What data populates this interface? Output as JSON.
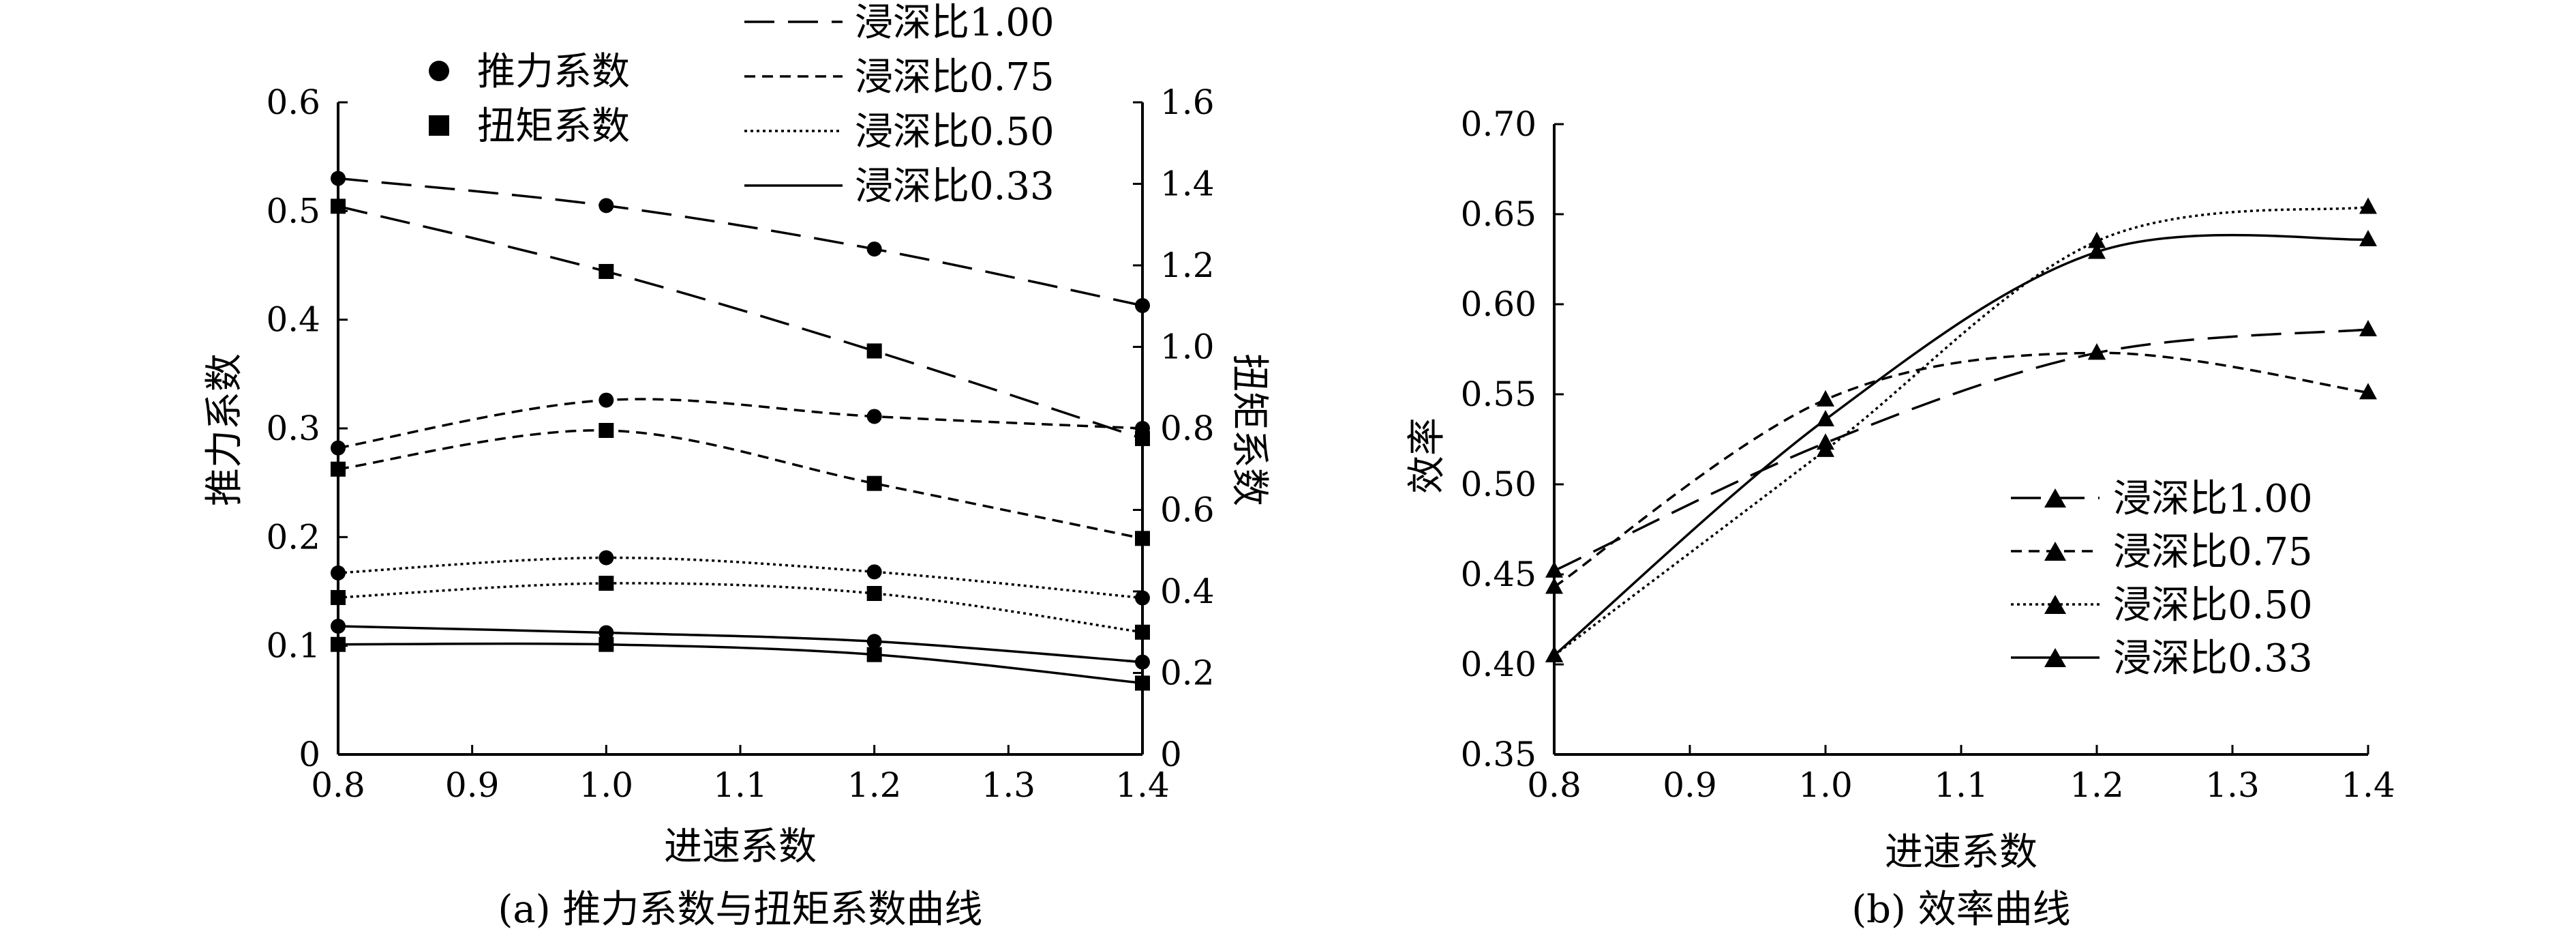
{
  "chart_data": [
    {
      "type": "line",
      "caption": "(a) 推力系数与扭矩系数曲线",
      "xlabel": "进速系数",
      "ylabel_left": "推力系数",
      "ylabel_right": "扭矩系数",
      "x": [
        0.8,
        1.0,
        1.2,
        1.4
      ],
      "xlim": [
        0.8,
        1.4
      ],
      "xticks": [
        "0.8",
        "0.9",
        "1.0",
        "1.1",
        "1.2",
        "1.3",
        "1.4"
      ],
      "ylim_left": [
        0,
        0.6
      ],
      "yticks_left": [
        "0",
        "0.1",
        "0.2",
        "0.3",
        "0.4",
        "0.5",
        "0.6"
      ],
      "ylim_right": [
        0,
        1.6
      ],
      "yticks_right": [
        "0",
        "0.2",
        "0.4",
        "0.6",
        "0.8",
        "1.0",
        "1.2",
        "1.4",
        "1.6"
      ],
      "grid": false,
      "marker_legend": [
        {
          "marker": "circle",
          "label": "推力系数"
        },
        {
          "marker": "square",
          "label": "扭矩系数"
        }
      ],
      "line_legend": [
        {
          "dash": "longdash",
          "label": "浸深比1.00"
        },
        {
          "dash": "dash",
          "label": "浸深比0.75"
        },
        {
          "dash": "dot",
          "label": "浸深比0.50"
        },
        {
          "dash": "solid",
          "label": "浸深比0.33"
        }
      ],
      "series": [
        {
          "name": "浸深比1.00",
          "quantity": "推力系数",
          "axis": "left",
          "dash": "longdash",
          "marker": "circle",
          "values": [
            0.53,
            0.505,
            0.465,
            0.413
          ]
        },
        {
          "name": "浸深比1.00",
          "quantity": "扭矩系数",
          "axis": "right",
          "dash": "longdash",
          "marker": "square",
          "values": [
            1.345,
            1.185,
            0.99,
            0.775
          ]
        },
        {
          "name": "浸深比0.75",
          "quantity": "推力系数",
          "axis": "left",
          "dash": "dash",
          "marker": "circle",
          "values": [
            0.282,
            0.326,
            0.311,
            0.3
          ]
        },
        {
          "name": "浸深比0.75",
          "quantity": "扭矩系数",
          "axis": "right",
          "dash": "dash",
          "marker": "square",
          "values": [
            0.7,
            0.795,
            0.665,
            0.53
          ]
        },
        {
          "name": "浸深比0.50",
          "quantity": "推力系数",
          "axis": "left",
          "dash": "dot",
          "marker": "circle",
          "values": [
            0.167,
            0.181,
            0.168,
            0.144
          ]
        },
        {
          "name": "浸深比0.50",
          "quantity": "扭矩系数",
          "axis": "right",
          "dash": "dot",
          "marker": "square",
          "values": [
            0.385,
            0.42,
            0.395,
            0.3
          ]
        },
        {
          "name": "浸深比0.33",
          "quantity": "推力系数",
          "axis": "left",
          "dash": "solid",
          "marker": "circle",
          "values": [
            0.118,
            0.112,
            0.104,
            0.085
          ]
        },
        {
          "name": "浸深比0.33",
          "quantity": "扭矩系数",
          "axis": "right",
          "dash": "solid",
          "marker": "square",
          "values": [
            0.27,
            0.27,
            0.245,
            0.175
          ]
        }
      ]
    },
    {
      "type": "line",
      "caption": "(b) 效率曲线",
      "xlabel": "进速系数",
      "ylabel": "效率",
      "x": [
        0.8,
        1.0,
        1.2,
        1.4
      ],
      "xlim": [
        0.8,
        1.4
      ],
      "xticks": [
        "0.8",
        "0.9",
        "1.0",
        "1.1",
        "1.2",
        "1.3",
        "1.4"
      ],
      "ylim": [
        0.35,
        0.7
      ],
      "yticks": [
        "0.35",
        "0.40",
        "0.45",
        "0.50",
        "0.55",
        "0.60",
        "0.65",
        "0.70"
      ],
      "grid": false,
      "legend_position": "lower-right",
      "series": [
        {
          "name": "浸深比1.00",
          "dash": "longdash",
          "marker": "triangle",
          "values": [
            0.452,
            0.523,
            0.573,
            0.586
          ]
        },
        {
          "name": "浸深比0.75",
          "dash": "dash",
          "marker": "triangle",
          "values": [
            0.443,
            0.547,
            0.573,
            0.551
          ]
        },
        {
          "name": "浸深比0.50",
          "dash": "dot",
          "marker": "triangle",
          "values": [
            0.405,
            0.519,
            0.635,
            0.654
          ]
        },
        {
          "name": "浸深比0.33",
          "dash": "solid",
          "marker": "triangle",
          "values": [
            0.405,
            0.536,
            0.629,
            0.636
          ]
        }
      ]
    }
  ]
}
